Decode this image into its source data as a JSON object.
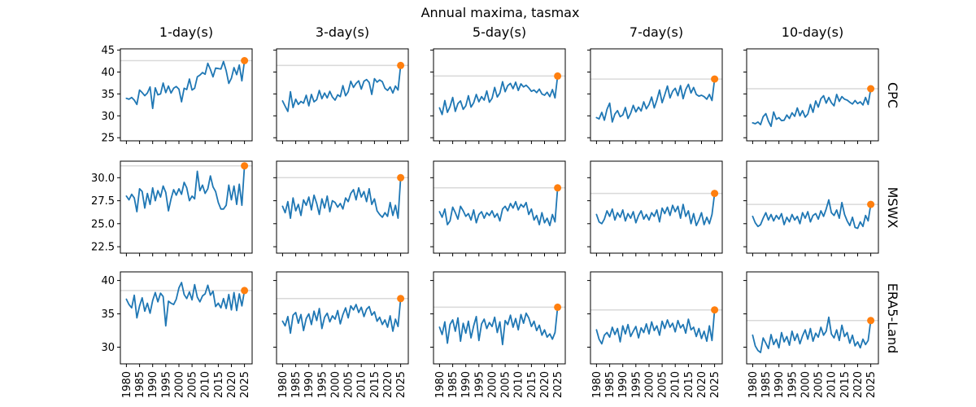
{
  "chart_data": {
    "type": "line",
    "title": "Annual maxima, tasmax",
    "legend": "none",
    "grid": "off",
    "columns": [
      "1-day(s)",
      "3-day(s)",
      "5-day(s)",
      "7-day(s)",
      "10-day(s)"
    ],
    "rows": [
      {
        "label": "CPC",
        "ylim": [
          24.3,
          45.3
        ],
        "ytick_values": [
          25,
          30,
          35,
          40,
          45
        ],
        "ytick_labels": [
          "25",
          "30",
          "35",
          "40",
          "45"
        ]
      },
      {
        "label": "MSWX",
        "ylim": [
          21.8,
          31.8
        ],
        "ytick_values": [
          22.5,
          25.0,
          27.5,
          30.0
        ],
        "ytick_labels": [
          "22.5",
          "25.0",
          "27.5",
          "30.0"
        ]
      },
      {
        "label": "ERA5-Land",
        "ylim": [
          27.5,
          41.3
        ],
        "ytick_values": [
          30,
          35,
          40
        ],
        "ytick_labels": [
          "30",
          "35",
          "40"
        ]
      }
    ],
    "x": {
      "start_year": 1980,
      "end_year": 2025,
      "xlim": [
        1977.7,
        2027.9
      ],
      "tick_years": [
        1980,
        1985,
        1990,
        1995,
        2000,
        2005,
        2010,
        2015,
        2020,
        2025
      ],
      "tick_labels": [
        "1980",
        "1985",
        "1990",
        "1995",
        "2000",
        "2005",
        "2010",
        "2015",
        "2020",
        "2025"
      ]
    },
    "colors": {
      "line": "#1f77b4",
      "marker": "#ff7f0e",
      "reference_line": "#d9d9d9",
      "axis": "#000000"
    },
    "marker_note": "orange dot marks latest (2025) value; gray horizontal line marks that same level across the panel",
    "panels": [
      {
        "dataset": "CPC",
        "duration": "1-day(s)",
        "ref": 42.6,
        "values": [
          34.0,
          33.8,
          34.2,
          33.6,
          32.6,
          35.9,
          35.3,
          34.6,
          35.2,
          36.6,
          31.7,
          36.4,
          34.8,
          35.0,
          37.5,
          35.3,
          36.8,
          35.2,
          36.3,
          36.7,
          36.1,
          33.2,
          36.3,
          36.0,
          38.4,
          35.9,
          36.3,
          38.9,
          39.3,
          39.9,
          39.5,
          42.0,
          40.6,
          38.9,
          40.9,
          40.8,
          40.7,
          42.4,
          40.3,
          37.4,
          38.6,
          41.0,
          39.4,
          41.6,
          38.0,
          42.6
        ]
      },
      {
        "dataset": "CPC",
        "duration": "3-day(s)",
        "ref": 41.5,
        "values": [
          33.4,
          32.2,
          31.0,
          35.5,
          31.9,
          33.8,
          32.6,
          33.3,
          32.9,
          34.7,
          32.3,
          34.9,
          33.2,
          33.7,
          35.8,
          33.9,
          35.2,
          34.1,
          35.6,
          34.3,
          33.6,
          34.8,
          34.4,
          36.9,
          34.6,
          35.5,
          37.9,
          36.5,
          37.4,
          38.0,
          36.1,
          37.9,
          38.3,
          37.6,
          34.9,
          38.5,
          37.7,
          38.2,
          37.8,
          36.3,
          35.8,
          36.6,
          35.2,
          36.8,
          35.9,
          41.5
        ]
      },
      {
        "dataset": "CPC",
        "duration": "5-day(s)",
        "ref": 39.1,
        "values": [
          31.8,
          30.3,
          33.5,
          30.8,
          32.1,
          34.2,
          31.0,
          32.8,
          33.4,
          31.5,
          32.3,
          34.6,
          32.0,
          33.0,
          34.9,
          33.2,
          34.4,
          33.6,
          35.7,
          33.1,
          34.0,
          36.5,
          34.3,
          35.2,
          37.8,
          35.5,
          36.9,
          37.4,
          36.2,
          37.7,
          35.8,
          37.3,
          36.6,
          37.0,
          36.4,
          35.6,
          35.9,
          35.3,
          36.1,
          35.0,
          34.7,
          35.4,
          34.4,
          36.0,
          34.1,
          39.1
        ]
      },
      {
        "dataset": "CPC",
        "duration": "7-day(s)",
        "ref": 38.4,
        "values": [
          29.6,
          29.3,
          30.8,
          29.0,
          31.5,
          32.9,
          28.6,
          30.4,
          31.2,
          29.8,
          30.2,
          31.9,
          29.4,
          30.6,
          32.4,
          30.9,
          32.0,
          31.1,
          33.2,
          31.6,
          32.6,
          34.3,
          31.8,
          33.6,
          35.9,
          33.0,
          34.8,
          36.8,
          34.1,
          35.6,
          36.3,
          34.6,
          36.9,
          33.9,
          36.0,
          37.2,
          35.2,
          36.5,
          34.9,
          34.5,
          34.7,
          34.4,
          33.8,
          34.9,
          33.5,
          38.4
        ]
      },
      {
        "dataset": "CPC",
        "duration": "10-day(s)",
        "ref": 36.2,
        "values": [
          28.4,
          28.2,
          28.6,
          28.0,
          29.8,
          30.5,
          28.8,
          27.6,
          30.9,
          29.2,
          29.6,
          28.9,
          29.0,
          30.2,
          29.4,
          30.7,
          29.9,
          31.8,
          30.0,
          31.2,
          29.7,
          30.4,
          32.6,
          30.8,
          33.4,
          32.0,
          33.9,
          34.6,
          32.9,
          34.2,
          33.0,
          32.3,
          34.9,
          33.3,
          34.4,
          33.8,
          33.6,
          33.1,
          32.7,
          33.5,
          32.8,
          33.2,
          32.5,
          34.2,
          32.6,
          36.2
        ]
      },
      {
        "dataset": "MSWX",
        "duration": "1-day(s)",
        "ref": 31.3,
        "values": [
          28.0,
          27.6,
          28.2,
          27.8,
          26.3,
          28.8,
          28.5,
          26.7,
          28.3,
          27.1,
          28.9,
          27.5,
          28.6,
          27.9,
          29.1,
          28.4,
          26.4,
          27.7,
          28.7,
          28.1,
          28.8,
          28.2,
          29.5,
          28.9,
          27.5,
          28.0,
          27.7,
          30.7,
          28.6,
          29.2,
          28.3,
          28.8,
          30.2,
          29.0,
          28.5,
          27.3,
          26.6,
          26.6,
          27.0,
          29.2,
          27.6,
          29.1,
          27.1,
          29.3,
          27.0,
          31.3
        ]
      },
      {
        "dataset": "MSWX",
        "duration": "3-day(s)",
        "ref": 30.0,
        "values": [
          26.9,
          26.2,
          27.4,
          25.6,
          27.8,
          26.4,
          27.1,
          25.9,
          27.6,
          27.0,
          27.9,
          26.5,
          28.1,
          27.2,
          26.0,
          27.7,
          26.7,
          28.0,
          26.3,
          27.5,
          27.3,
          26.8,
          27.2,
          26.6,
          27.8,
          27.4,
          28.3,
          28.7,
          27.6,
          28.9,
          27.9,
          28.5,
          27.4,
          28.8,
          27.1,
          27.7,
          26.4,
          26.0,
          25.7,
          26.2,
          25.8,
          27.3,
          25.9,
          27.0,
          25.6,
          30.0
        ]
      },
      {
        "dataset": "MSWX",
        "duration": "5-day(s)",
        "ref": 28.9,
        "values": [
          26.3,
          25.7,
          26.6,
          24.9,
          25.3,
          26.8,
          26.2,
          25.5,
          26.9,
          26.4,
          25.8,
          26.1,
          25.4,
          26.5,
          25.1,
          26.0,
          26.3,
          25.6,
          26.2,
          25.9,
          26.4,
          25.7,
          26.1,
          25.3,
          26.6,
          26.9,
          26.4,
          27.2,
          26.7,
          27.4,
          26.5,
          27.1,
          26.8,
          27.3,
          26.0,
          26.6,
          25.4,
          25.9,
          24.9,
          26.2,
          25.1,
          25.6,
          24.8,
          26.0,
          25.2,
          28.9
        ]
      },
      {
        "dataset": "MSWX",
        "duration": "7-day(s)",
        "ref": 28.3,
        "values": [
          26.0,
          25.2,
          25.0,
          25.5,
          26.4,
          25.8,
          26.6,
          25.4,
          26.2,
          25.7,
          26.5,
          25.3,
          26.1,
          25.6,
          26.3,
          25.1,
          25.9,
          26.4,
          25.5,
          26.0,
          25.4,
          26.2,
          25.8,
          26.5,
          25.2,
          26.7,
          26.1,
          26.8,
          25.9,
          27.0,
          26.3,
          26.9,
          25.6,
          27.1,
          25.8,
          26.4,
          25.0,
          26.1,
          24.8,
          25.4,
          26.2,
          24.9,
          25.7,
          25.0,
          26.0,
          28.3
        ]
      },
      {
        "dataset": "MSWX",
        "duration": "10-day(s)",
        "ref": 27.1,
        "values": [
          25.8,
          25.1,
          24.7,
          24.9,
          25.6,
          26.2,
          25.4,
          26.0,
          25.3,
          25.9,
          25.5,
          26.1,
          24.9,
          25.7,
          25.2,
          26.0,
          25.4,
          25.8,
          25.0,
          26.2,
          25.6,
          26.3,
          25.2,
          25.9,
          26.1,
          25.5,
          26.4,
          25.8,
          26.6,
          27.6,
          26.2,
          25.9,
          26.5,
          25.6,
          27.3,
          26.0,
          25.3,
          24.8,
          25.7,
          24.6,
          24.5,
          25.2,
          24.7,
          25.9,
          25.3,
          27.1
        ]
      },
      {
        "dataset": "ERA5-Land",
        "duration": "1-day(s)",
        "ref": 38.5,
        "values": [
          37.2,
          36.4,
          35.9,
          37.8,
          34.4,
          36.2,
          37.4,
          35.4,
          36.6,
          35.1,
          37.0,
          38.2,
          36.8,
          38.1,
          37.6,
          33.2,
          36.9,
          36.6,
          36.4,
          37.2,
          38.9,
          39.7,
          37.9,
          37.3,
          38.3,
          37.1,
          39.4,
          37.5,
          36.8,
          37.7,
          38.0,
          39.3,
          37.8,
          38.4,
          36.1,
          36.6,
          35.9,
          37.3,
          35.8,
          37.9,
          35.6,
          38.2,
          35.5,
          38.0,
          36.2,
          38.5
        ]
      },
      {
        "dataset": "ERA5-Land",
        "duration": "3-day(s)",
        "ref": 37.3,
        "values": [
          33.9,
          33.2,
          34.6,
          32.1,
          34.8,
          35.2,
          33.6,
          34.9,
          32.5,
          34.3,
          35.0,
          33.4,
          35.4,
          34.0,
          35.8,
          32.8,
          34.5,
          35.1,
          33.8,
          34.7,
          34.2,
          35.5,
          33.5,
          34.9,
          35.9,
          34.4,
          36.2,
          35.6,
          36.4,
          35.2,
          36.0,
          34.6,
          35.7,
          36.1,
          34.8,
          35.3,
          33.9,
          34.5,
          33.4,
          34.1,
          33.0,
          34.7,
          32.4,
          34.2,
          33.1,
          37.3
        ]
      },
      {
        "dataset": "ERA5-Land",
        "duration": "5-day(s)",
        "ref": 36.0,
        "values": [
          33.0,
          31.9,
          33.8,
          30.6,
          33.4,
          34.1,
          32.4,
          34.4,
          30.9,
          33.6,
          32.1,
          33.9,
          31.4,
          33.2,
          34.6,
          31.0,
          33.5,
          34.2,
          32.8,
          33.7,
          33.1,
          34.5,
          32.2,
          33.8,
          30.4,
          34.0,
          33.4,
          34.8,
          33.0,
          34.3,
          32.6,
          34.9,
          33.6,
          35.1,
          34.4,
          33.1,
          33.9,
          32.5,
          33.3,
          31.8,
          32.6,
          31.5,
          32.0,
          31.2,
          32.2,
          36.0
        ]
      },
      {
        "dataset": "ERA5-Land",
        "duration": "7-day(s)",
        "ref": 35.6,
        "values": [
          32.6,
          31.2,
          30.5,
          31.8,
          32.2,
          31.5,
          33.0,
          31.9,
          32.8,
          30.8,
          33.2,
          32.0,
          33.4,
          31.6,
          32.4,
          33.1,
          31.4,
          32.9,
          32.2,
          33.5,
          32.0,
          33.8,
          32.5,
          33.2,
          31.8,
          33.9,
          32.8,
          34.1,
          33.0,
          33.6,
          32.3,
          34.0,
          32.9,
          33.4,
          32.1,
          34.2,
          32.6,
          33.0,
          31.6,
          32.8,
          31.3,
          32.4,
          30.9,
          33.2,
          31.0,
          35.6
        ]
      },
      {
        "dataset": "ERA5-Land",
        "duration": "10-day(s)",
        "ref": 34.0,
        "values": [
          31.8,
          30.2,
          29.5,
          29.2,
          31.4,
          30.6,
          29.8,
          31.9,
          30.4,
          31.2,
          29.9,
          32.2,
          30.8,
          31.6,
          30.3,
          32.4,
          31.0,
          32.0,
          30.5,
          31.7,
          32.6,
          31.2,
          32.8,
          30.9,
          32.1,
          31.5,
          33.0,
          31.8,
          32.4,
          34.5,
          32.0,
          31.4,
          32.6,
          31.0,
          33.3,
          31.6,
          32.2,
          30.6,
          31.8,
          30.2,
          30.8,
          29.9,
          31.2,
          30.4,
          31.0,
          34.0
        ]
      }
    ]
  }
}
